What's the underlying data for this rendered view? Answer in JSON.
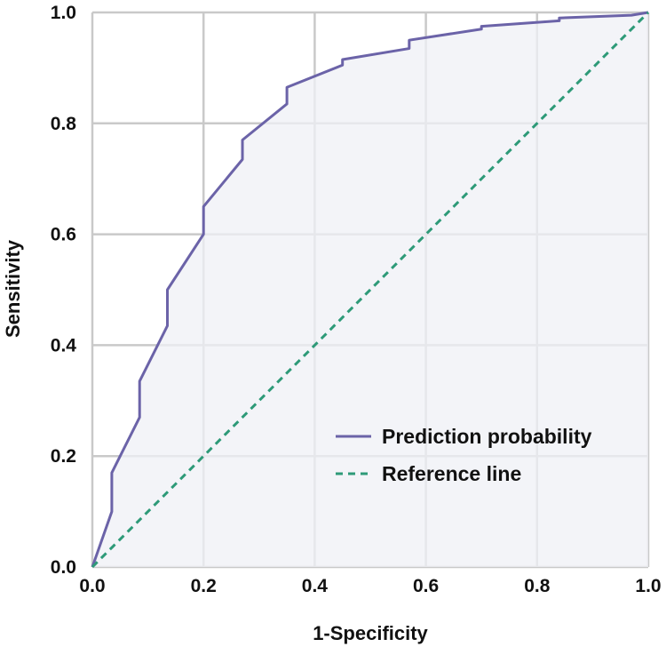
{
  "chart_data": {
    "type": "line",
    "xlabel": "1-Specificity",
    "ylabel": "Sensitivity",
    "xlim": [
      0,
      1
    ],
    "ylim": [
      0,
      1
    ],
    "x_ticks": [
      "0.0",
      "0.2",
      "0.4",
      "0.6",
      "0.8",
      "1.0"
    ],
    "y_ticks": [
      "0.0",
      "0.2",
      "0.4",
      "0.6",
      "0.8",
      "1.0"
    ],
    "grid": true,
    "legend_position": "bottom-right",
    "series": [
      {
        "name": "Prediction probability",
        "style": "solid",
        "color": "#6b63a8",
        "fill": "#eff0f6",
        "x": [
          0.0,
          0.035,
          0.035,
          0.085,
          0.085,
          0.135,
          0.135,
          0.2,
          0.2,
          0.27,
          0.27,
          0.35,
          0.35,
          0.45,
          0.45,
          0.57,
          0.57,
          0.7,
          0.7,
          0.84,
          0.84,
          0.97,
          1.0
        ],
        "y": [
          0.0,
          0.1,
          0.17,
          0.27,
          0.335,
          0.435,
          0.5,
          0.6,
          0.65,
          0.735,
          0.77,
          0.835,
          0.865,
          0.905,
          0.915,
          0.935,
          0.95,
          0.97,
          0.975,
          0.985,
          0.99,
          0.995,
          1.0
        ]
      },
      {
        "name": "Reference line",
        "style": "dashed",
        "color": "#2e9a78",
        "x": [
          0.0,
          1.0
        ],
        "y": [
          0.0,
          1.0
        ]
      }
    ]
  }
}
